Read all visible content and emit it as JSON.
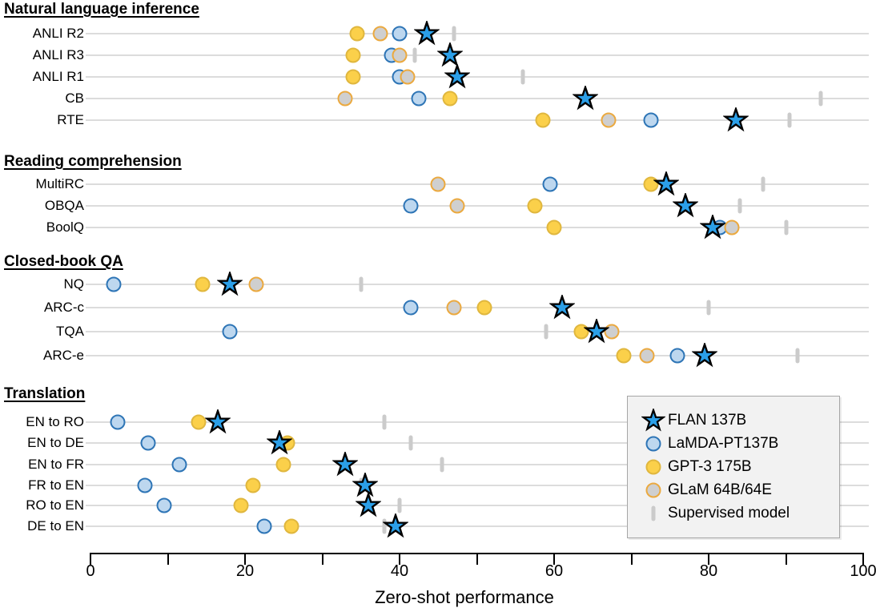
{
  "colors": {
    "flan_fill": "#2B9FE8",
    "flan_stroke": "#000000",
    "lamda_fill": "#BDD7EF",
    "lamda_stroke": "#2E75B6",
    "gpt3_fill": "#FBD04A",
    "gpt3_stroke": "#E0B73E",
    "glam_fill": "#CFCFCF",
    "glam_stroke": "#EBA93F",
    "supervised": "#CBCBCB",
    "gridline": "#DCDCDC",
    "axis": "#000000",
    "legend_bg": "#F2F2F2",
    "legend_border": "#A6A6A6"
  },
  "legend": {
    "items": [
      {
        "label": "FLAN 137B",
        "marker": "star"
      },
      {
        "label": "LaMDA-PT137B",
        "marker": "lamda"
      },
      {
        "label": "GPT-3 175B",
        "marker": "gpt3"
      },
      {
        "label": "GLaM 64B/64E",
        "marker": "glam"
      },
      {
        "label": "Supervised model",
        "marker": "supervised"
      }
    ]
  },
  "chart_data": {
    "type": "scatter",
    "xlabel": "Zero-shot performance",
    "xlim": [
      0,
      100
    ],
    "xticks_labeled": [
      0,
      20,
      40,
      60,
      80,
      100
    ],
    "xtick_step": 10,
    "grid": "horizontal-row-lines",
    "legend_position": "bottom-right",
    "series": [
      "FLAN 137B",
      "LaMDA-PT137B",
      "GPT-3 175B",
      "GLaM 64B/64E",
      "Supervised model"
    ],
    "sections": [
      {
        "title": "Natural language inference",
        "rows": [
          {
            "label": "ANLI R2",
            "gpt3": 34.5,
            "glam": 37.5,
            "lamda": 40,
            "flan": 43.5,
            "supervised": 47
          },
          {
            "label": "ANLI R3",
            "gpt3": 34,
            "lamda": 39,
            "glam": 40,
            "supervised": 42,
            "flan": 46.5
          },
          {
            "label": "ANLI R1",
            "gpt3": 34,
            "lamda": 40,
            "glam": 41,
            "flan": 47.5,
            "supervised": 56
          },
          {
            "label": "CB",
            "glam": 33,
            "lamda": 42.5,
            "gpt3": 46.5,
            "flan": 64,
            "supervised": 94.5
          },
          {
            "label": "RTE",
            "gpt3": 58.5,
            "glam": 67,
            "lamda": 72.5,
            "flan": 83.5,
            "supervised": 90.5
          }
        ]
      },
      {
        "title": "Reading comprehension",
        "rows": [
          {
            "label": "MultiRC",
            "glam": 45,
            "lamda": 59.5,
            "gpt3": 72.5,
            "flan": 74.5,
            "supervised": 87
          },
          {
            "label": "OBQA",
            "lamda": 41.5,
            "glam": 47.5,
            "gpt3": 57.5,
            "flan": 77,
            "supervised": 84
          },
          {
            "label": "BoolQ",
            "gpt3": 60,
            "flan": 80.5,
            "lamda": 81.5,
            "glam": 83,
            "supervised": 90
          }
        ]
      },
      {
        "title": "Closed-book QA",
        "rows": [
          {
            "label": "NQ",
            "lamda": 3,
            "gpt3": 14.5,
            "flan": 18,
            "glam": 21.5,
            "supervised": 35
          },
          {
            "label": "ARC-c",
            "lamda": 41.5,
            "glam": 47,
            "gpt3": 51,
            "flan": 61,
            "supervised": 80
          },
          {
            "label": "TQA",
            "lamda": 18,
            "supervised": 59,
            "gpt3": 63.5,
            "flan": 65.5,
            "glam": 67.5
          },
          {
            "label": "ARC-e",
            "gpt3": 69,
            "glam": 72,
            "lamda": 76,
            "flan": 79.5,
            "supervised": 91.5
          }
        ]
      },
      {
        "title": "Translation",
        "rows": [
          {
            "label": "EN to RO",
            "lamda": 3.5,
            "gpt3": 14,
            "flan": 16.5,
            "supervised": 38
          },
          {
            "label": "EN to DE",
            "lamda": 7.5,
            "flan": 24.5,
            "gpt3": 25.5,
            "supervised": 41.5
          },
          {
            "label": "EN to FR",
            "lamda": 11.5,
            "gpt3": 25,
            "flan": 33,
            "supervised": 45.5
          },
          {
            "label": "FR to EN",
            "lamda": 7,
            "gpt3": 21,
            "supervised": 35,
            "flan": 35.5
          },
          {
            "label": "RO to EN",
            "lamda": 9.5,
            "gpt3": 19.5,
            "flan": 36,
            "supervised": 40
          },
          {
            "label": "DE to EN",
            "lamda": 22.5,
            "gpt3": 26,
            "supervised": 38,
            "flan": 39.5
          }
        ]
      }
    ]
  }
}
